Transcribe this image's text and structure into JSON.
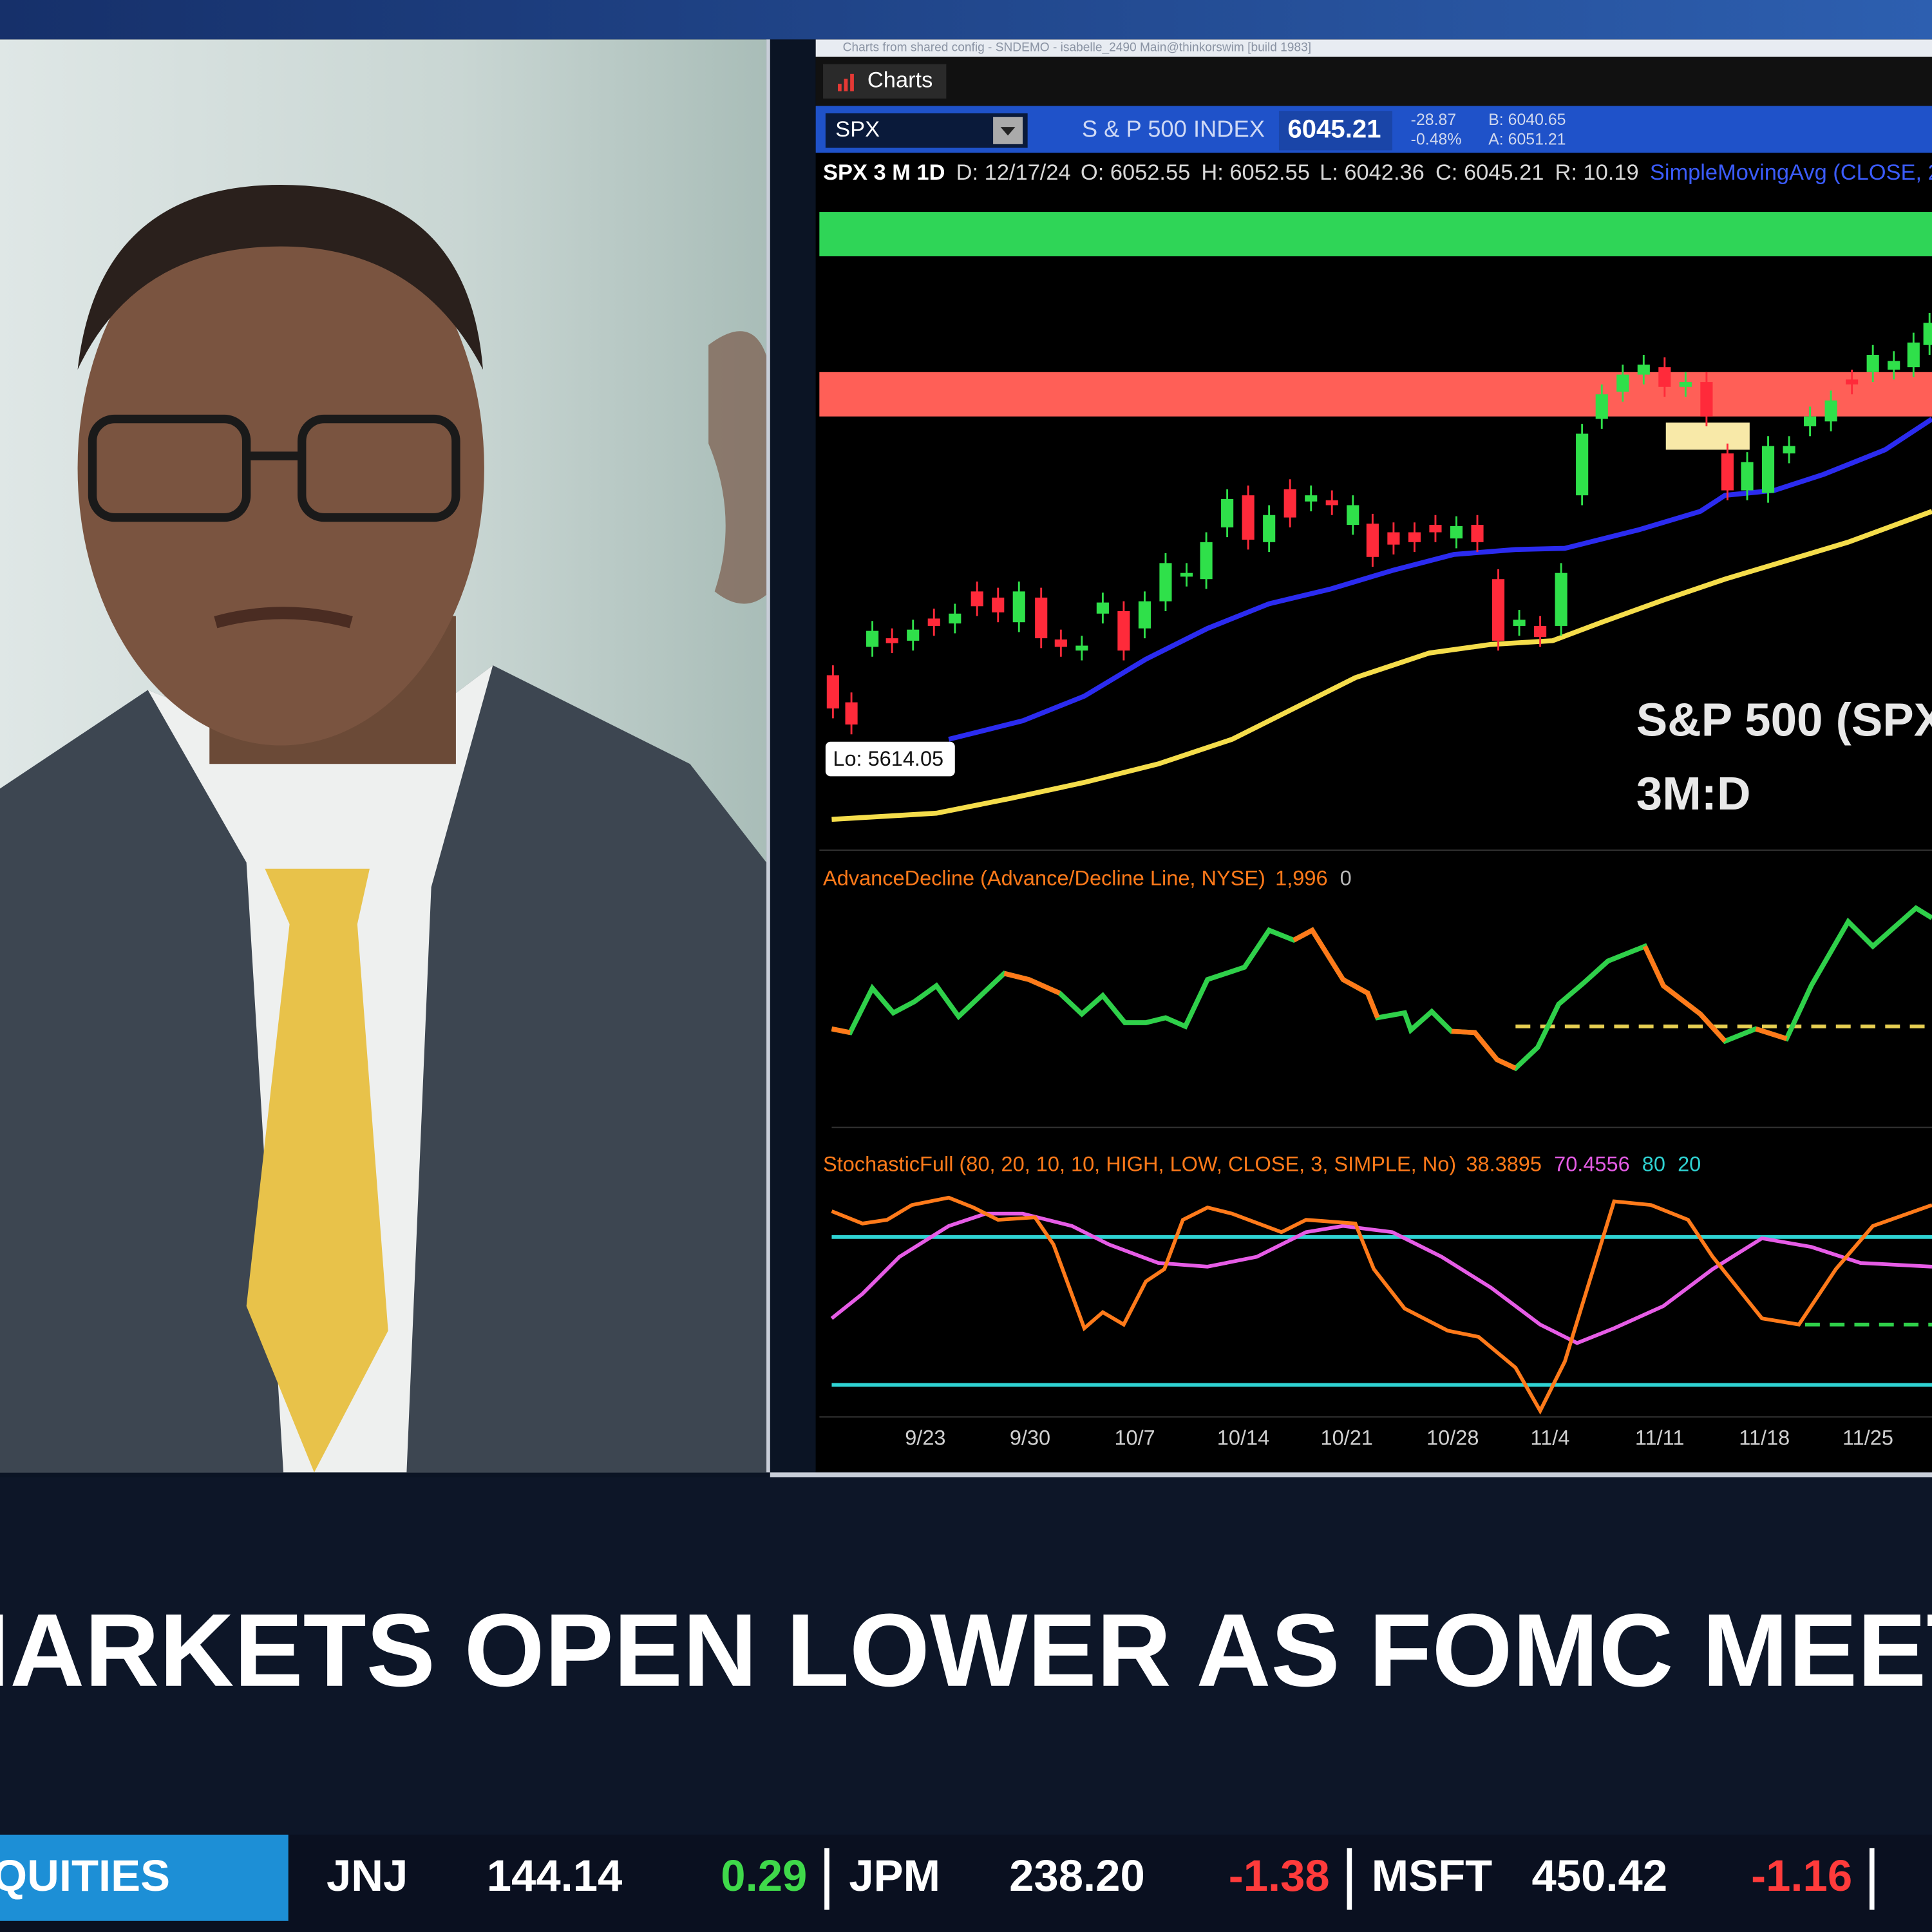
{
  "chart_window": {
    "title": "Charts from shared config - SNDEMO - isabelle_2490 Main@thinkorswim [build 1983]",
    "tab": "Charts"
  },
  "symbol_bar": {
    "symbol": "SPX",
    "description": "S & P 500 INDEX",
    "last": "6045.21",
    "change": "-28.87",
    "change_pct": "-0.48%",
    "bid": "B: 6040.65",
    "ask": "A: 6051.21"
  },
  "info_line": [
    "SPX 3 M 1D",
    "D: 12/17/24",
    "O: 6052.55",
    "H: 6052.55",
    "L: 6042.36",
    "C: 6045.21",
    "R: 10.19",
    "SimpleMovingAvg (CLOSE, 2"
  ],
  "price_chart": {
    "low_label": "Lo: 5614.05",
    "caption": [
      "S&P 500 (SPX",
      "3M:D"
    ]
  },
  "advance_decline": {
    "label": "AdvanceDecline (Advance/Decline Line, NYSE)",
    "readouts": [
      "1,996",
      "0"
    ]
  },
  "stochastic": {
    "label": "StochasticFull (80, 20, 10, 10, HIGH, LOW, CLOSE, 3, SIMPLE, No)",
    "readouts": [
      "38.3895",
      "70.4556",
      "80",
      "20"
    ]
  },
  "x_axis": [
    "9/23",
    "9/30",
    "10/7",
    "10/14",
    "10/21",
    "10/28",
    "11/4",
    "11/11",
    "11/18",
    "11/25"
  ],
  "headline": "MARKETS OPEN LOWER AS FOMC MEETING",
  "ticker": {
    "section": "EQUITIES",
    "items": [
      {
        "symbol": "JNJ",
        "price": "144.14",
        "change": "0.29"
      },
      {
        "symbol": "JPM",
        "price": "238.20",
        "change": "-1.38"
      },
      {
        "symbol": "MSFT",
        "price": "450.42",
        "change": "-1.16"
      }
    ]
  }
}
